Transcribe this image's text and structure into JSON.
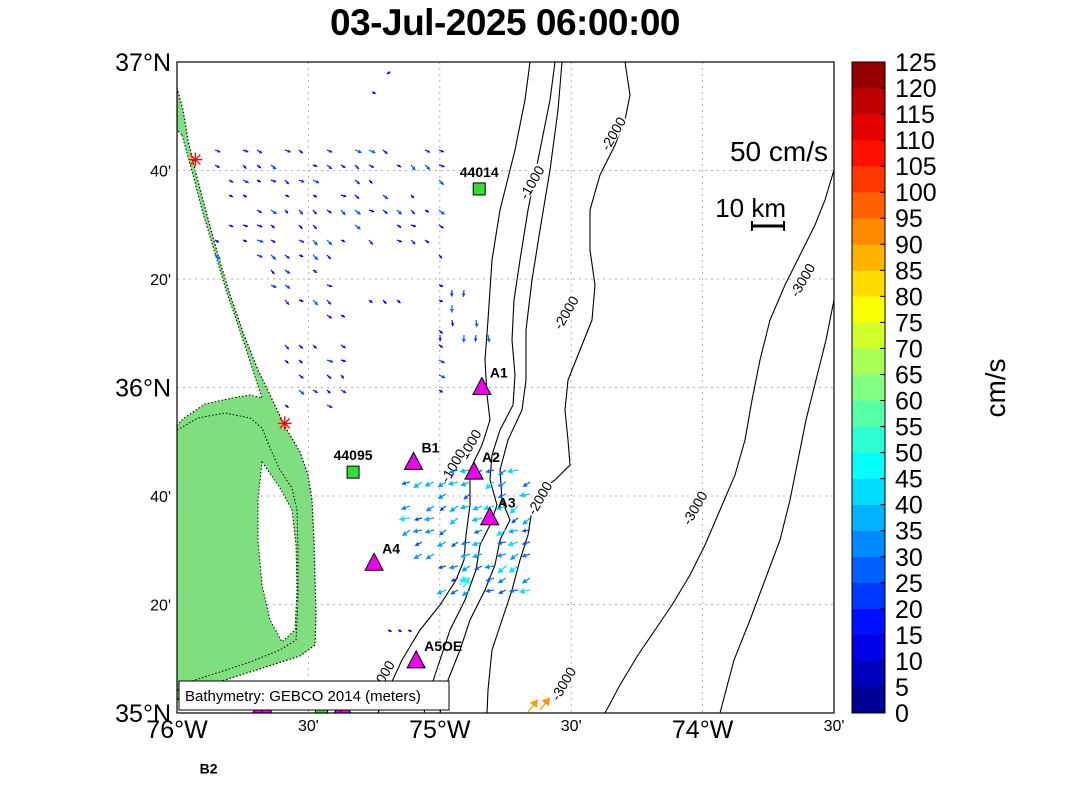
{
  "title": "03-Jul-2025 06:00:00",
  "axes": {
    "lat_ticks": [
      {
        "label": "37°N",
        "lat": 37.0,
        "major": true
      },
      {
        "label": "40'",
        "lat": 36.6667,
        "major": false
      },
      {
        "label": "20'",
        "lat": 36.3333,
        "major": false
      },
      {
        "label": "36°N",
        "lat": 36.0,
        "major": true
      },
      {
        "label": "40'",
        "lat": 35.6667,
        "major": false
      },
      {
        "label": "20'",
        "lat": 35.3333,
        "major": false
      },
      {
        "label": "35°N",
        "lat": 35.0,
        "major": true
      }
    ],
    "lon_ticks": [
      {
        "label": "76°W",
        "lon": -76.0,
        "major": true
      },
      {
        "label": "30'",
        "lon": -75.5,
        "major": false
      },
      {
        "label": "75°W",
        "lon": -75.0,
        "major": true
      },
      {
        "label": "30'",
        "lon": -74.5,
        "major": false
      },
      {
        "label": "74°W",
        "lon": -74.0,
        "major": true
      },
      {
        "label": "30'",
        "lon": -73.5,
        "major": false
      }
    ],
    "lon_range": [
      -76.0,
      -73.5
    ],
    "lat_range": [
      35.0,
      37.0
    ]
  },
  "colorbar": {
    "label": "cm/s",
    "min": 0,
    "max": 125,
    "step": 5,
    "tick_labels": [
      "125",
      "120",
      "115",
      "110",
      "105",
      "100",
      "95",
      "90",
      "85",
      "80",
      "75",
      "70",
      "65",
      "60",
      "55",
      "50",
      "45",
      "40",
      "35",
      "30",
      "25",
      "20",
      "15",
      "10",
      "5",
      "0"
    ]
  },
  "legend": {
    "vector_scale_label": "50 cm/s",
    "scale_bar_label": "10 km"
  },
  "bathymetry_note": "Bathymetry: GEBCO 2014 (meters)",
  "contour_labels": [
    {
      "text": "-1000",
      "lon": -74.65,
      "lat": 36.63
    },
    {
      "text": "-2000",
      "lon": -74.34,
      "lat": 36.78
    },
    {
      "text": "-2000",
      "lon": -74.52,
      "lat": 36.23
    },
    {
      "text": "-3000",
      "lon": -73.62,
      "lat": 36.33
    },
    {
      "text": "-1000",
      "lon": -74.89,
      "lat": 35.82
    },
    {
      "text": "-1000",
      "lon": -74.95,
      "lat": 35.76
    },
    {
      "text": "-2000",
      "lon": -74.62,
      "lat": 35.66
    },
    {
      "text": "-3000",
      "lon": -74.03,
      "lat": 35.63
    },
    {
      "text": "-3000",
      "lon": -74.53,
      "lat": 35.09
    },
    {
      "text": "-1000",
      "lon": -75.22,
      "lat": 35.11
    }
  ],
  "buoys": [
    {
      "label": "44014",
      "lon": -74.85,
      "lat": 36.61
    },
    {
      "label": "44095",
      "lon": -75.33,
      "lat": 35.74
    }
  ],
  "moorings": [
    {
      "label": "A1",
      "lon": -74.84,
      "lat": 36.0
    },
    {
      "label": "B1",
      "lon": -75.1,
      "lat": 35.77
    },
    {
      "label": "A2",
      "lon": -74.87,
      "lat": 35.74
    },
    {
      "label": "A3",
      "lon": -74.81,
      "lat": 35.6
    },
    {
      "label": "A4",
      "lon": -75.25,
      "lat": 35.46
    },
    {
      "label": "A5OE",
      "lon": -75.09,
      "lat": 35.16
    }
  ],
  "offmap_labels": [
    {
      "label": "B2",
      "lon": -75.88,
      "lat": 34.83
    }
  ],
  "site_markers": [
    {
      "name": "duck-site",
      "lon": -75.93,
      "lat": 36.7
    },
    {
      "name": "hatteras-site",
      "lon": -75.59,
      "lat": 35.89
    }
  ]
}
